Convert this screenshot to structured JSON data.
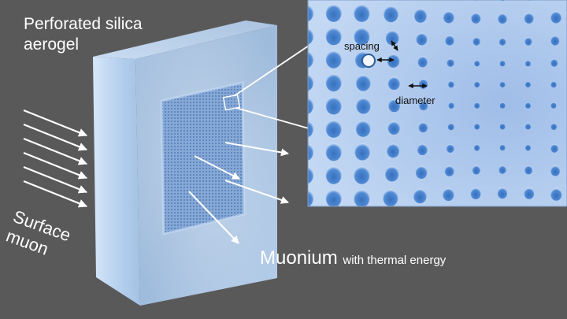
{
  "labels": {
    "aerogel_line1": "Perforated silica",
    "aerogel_line2": "aerogel",
    "surface_line1": "Surface",
    "surface_line2": "muon",
    "muonium_main": "Muonium",
    "muonium_sub": "with thermal energy",
    "spacing": "spacing",
    "diameter": "diameter"
  },
  "colors": {
    "background": "#595959",
    "aerogel_face": "#a9c6e6",
    "aerogel_side": "#c6dcf3",
    "perforated_region": "#7fa3d3",
    "inset_background": "#aac8ef",
    "arrow": "#ffffff",
    "text": "#ffffff",
    "inset_text": "#111111"
  }
}
